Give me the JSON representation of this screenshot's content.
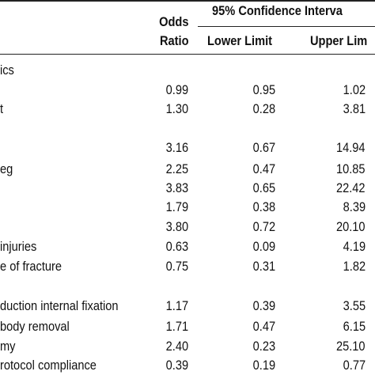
{
  "header": {
    "odds_top": "Odds",
    "odds_bottom": "Ratio",
    "ci": "95% Confidence Interva",
    "lower": "Lower Limit",
    "upper": "Upper Lim"
  },
  "section_label": "ics",
  "rows": [
    {
      "label": "",
      "or": "0.99",
      "lower": "0.95",
      "upper": "1.02"
    },
    {
      "label": "t",
      "or": "1.30",
      "lower": "0.28",
      "upper": "3.81"
    },
    {
      "label": "",
      "or": "3.16",
      "lower": "0.67",
      "upper": "14.94"
    },
    {
      "label": "eg",
      "or": "2.25",
      "lower": "0.47",
      "upper": "10.85"
    },
    {
      "label": "",
      "or": "3.83",
      "lower": "0.65",
      "upper": "22.42"
    },
    {
      "label": "",
      "or": "1.79",
      "lower": "0.38",
      "upper": "8.39"
    },
    {
      "label": "",
      "or": "3.80",
      "lower": "0.72",
      "upper": "20.10"
    },
    {
      "label": "injuries",
      "or": "0.63",
      "lower": "0.09",
      "upper": "4.19"
    },
    {
      "label": "e of fracture",
      "or": "0.75",
      "lower": "0.31",
      "upper": "1.82"
    },
    {
      "label": "duction internal fixation",
      "or": "1.17",
      "lower": "0.39",
      "upper": "3.55"
    },
    {
      "label": "body removal",
      "or": "1.71",
      "lower": "0.47",
      "upper": "6.15"
    },
    {
      "label": "my",
      "or": "2.40",
      "lower": "0.23",
      "upper": "25.10"
    },
    {
      "label": "rotocol compliance",
      "or": "0.39",
      "lower": "0.19",
      "upper": "0.77"
    }
  ]
}
